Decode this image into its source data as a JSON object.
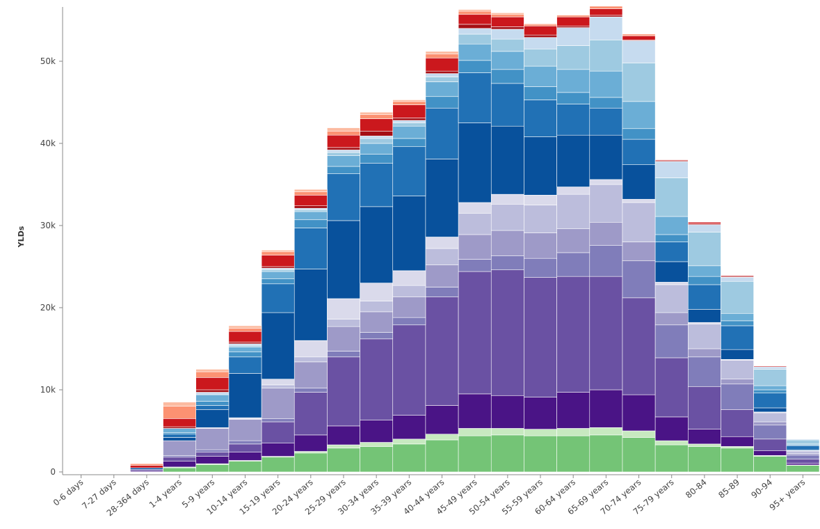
{
  "chart_data": {
    "type": "stacked-bar",
    "y_label": "YLDs",
    "categories": [
      "0-6 days",
      "7-27 days",
      "28-364 days",
      "1-4 years",
      "5-9 years",
      "10-14 years",
      "15-19 years",
      "20-24 years",
      "25-29 years",
      "30-34 years",
      "35-39 years",
      "40-44 years",
      "45-49 years",
      "50-54 years",
      "55-59 years",
      "60-64 years",
      "65-69 years",
      "70-74 years",
      "75-79 years",
      "80-84",
      "85-89",
      "90-94",
      "95+ years"
    ],
    "ylim": [
      0,
      57000
    ],
    "yticks": [
      0,
      {
        "value": 10000,
        "label": "10k"
      },
      {
        "value": 20000,
        "label": "20k"
      },
      {
        "value": 30000,
        "label": "30k"
      },
      {
        "value": 40000,
        "label": "40k"
      },
      {
        "value": 50000,
        "label": "50k"
      }
    ],
    "series": [
      {
        "color": "#74c476",
        "values": [
          30,
          30,
          0,
          500,
          900,
          1300,
          1800,
          2300,
          2900,
          3100,
          3400,
          3900,
          4400,
          4500,
          4400,
          4400,
          4500,
          4200,
          3300,
          3100,
          2900,
          1900,
          800
        ]
      },
      {
        "color": "#c7e9c0",
        "values": [
          0,
          0,
          0,
          100,
          100,
          100,
          100,
          200,
          400,
          500,
          600,
          700,
          900,
          800,
          800,
          900,
          900,
          800,
          500,
          300,
          200,
          100,
          50
        ]
      },
      {
        "color": "#4a1486",
        "values": [
          0,
          0,
          100,
          700,
          900,
          1000,
          1600,
          2000,
          2300,
          2700,
          2900,
          3500,
          4200,
          4000,
          3900,
          4400,
          4600,
          4400,
          2900,
          1800,
          1200,
          600,
          200
        ]
      },
      {
        "color": "#6a51a3",
        "values": [
          0,
          0,
          200,
          500,
          500,
          1000,
          2600,
          5200,
          8400,
          9900,
          11000,
          13200,
          14900,
          15300,
          14600,
          14100,
          13800,
          11800,
          7200,
          5200,
          3300,
          1400,
          500
        ]
      },
      {
        "color": "#807dba",
        "values": [
          0,
          0,
          0,
          200,
          300,
          400,
          400,
          500,
          700,
          800,
          900,
          1200,
          1500,
          1700,
          2300,
          2900,
          3800,
          4500,
          4000,
          3600,
          3100,
          1700,
          500
        ]
      },
      {
        "color": "#9e9ac8",
        "values": [
          0,
          0,
          0,
          1800,
          2600,
          2600,
          3700,
          3200,
          3000,
          2500,
          2500,
          2700,
          3000,
          3100,
          3100,
          2900,
          2800,
          2300,
          1500,
          1000,
          600,
          400,
          200
        ]
      },
      {
        "color": "#bcbddc",
        "values": [
          0,
          0,
          0,
          0,
          100,
          100,
          400,
          600,
          900,
          1300,
          1400,
          2000,
          2600,
          3200,
          3400,
          4200,
          4600,
          4800,
          3400,
          3000,
          2300,
          1100,
          300
        ]
      },
      {
        "color": "#dadaeb",
        "values": [
          0,
          0,
          0,
          0,
          0,
          100,
          700,
          2000,
          2500,
          2200,
          1800,
          1400,
          1300,
          1200,
          1200,
          900,
          600,
          400,
          300,
          200,
          100,
          100,
          50
        ]
      },
      {
        "color": "#08519c",
        "values": [
          0,
          0,
          200,
          400,
          2200,
          5400,
          8100,
          8700,
          9500,
          9300,
          9100,
          9500,
          9700,
          8300,
          7100,
          6300,
          5400,
          4200,
          2500,
          1600,
          1200,
          500,
          100
        ]
      },
      {
        "color": "#2171b5",
        "values": [
          0,
          0,
          0,
          400,
          500,
          2000,
          3500,
          5000,
          5700,
          5300,
          6000,
          6200,
          6100,
          5200,
          4500,
          3800,
          3300,
          3100,
          2400,
          3000,
          2900,
          1800,
          500
        ]
      },
      {
        "color": "#4292c6",
        "values": [
          0,
          0,
          0,
          200,
          500,
          600,
          600,
          1000,
          900,
          1100,
          1000,
          1400,
          1500,
          1700,
          1600,
          1400,
          1300,
          1300,
          900,
          1000,
          600,
          400,
          100
        ]
      },
      {
        "color": "#6baed6",
        "values": [
          0,
          0,
          0,
          500,
          800,
          600,
          900,
          1000,
          1300,
          1300,
          1500,
          1800,
          2000,
          2200,
          2500,
          2800,
          3200,
          3300,
          2200,
          1300,
          900,
          500,
          100
        ]
      },
      {
        "color": "#9ecae1",
        "values": [
          0,
          0,
          0,
          0,
          0,
          200,
          200,
          200,
          400,
          600,
          400,
          600,
          1200,
          1500,
          2100,
          2900,
          3800,
          4700,
          4700,
          4100,
          3900,
          2000,
          500
        ]
      },
      {
        "color": "#c6dbef",
        "values": [
          0,
          0,
          0,
          0,
          300,
          200,
          200,
          200,
          300,
          300,
          300,
          400,
          700,
          1200,
          1400,
          2200,
          2800,
          2700,
          2000,
          900,
          500,
          300,
          100
        ]
      },
      {
        "color": "#a50f15",
        "values": [
          0,
          0,
          0,
          200,
          300,
          200,
          200,
          300,
          300,
          600,
          300,
          300,
          500,
          300,
          300,
          200,
          200,
          100,
          100,
          100,
          100,
          0,
          0
        ]
      },
      {
        "color": "#cb181d",
        "values": [
          0,
          0,
          300,
          1000,
          1500,
          1300,
          1400,
          1300,
          1500,
          1500,
          1600,
          1600,
          1200,
          1200,
          1100,
          1100,
          800,
          500,
          100,
          200,
          100,
          100,
          0
        ]
      },
      {
        "color": "#fc9272",
        "values": [
          50,
          50,
          200,
          1500,
          700,
          400,
          400,
          400,
          500,
          500,
          400,
          500,
          400,
          300,
          200,
          200,
          300,
          200,
          0,
          0,
          0,
          0,
          0
        ]
      },
      {
        "color": "#fcbba1",
        "values": [
          0,
          0,
          0,
          500,
          300,
          300,
          200,
          300,
          400,
          300,
          200,
          300,
          200,
          200,
          100,
          0,
          0,
          0,
          0,
          0,
          0,
          0,
          0
        ]
      }
    ]
  }
}
